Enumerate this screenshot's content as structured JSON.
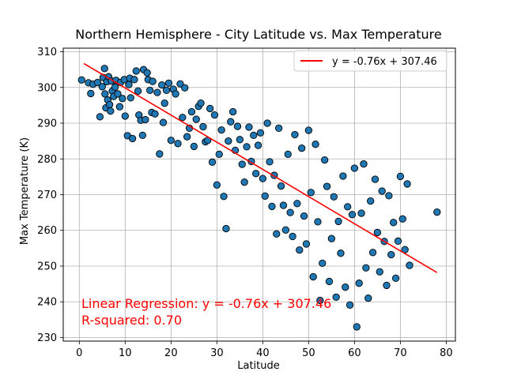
{
  "chart_data": {
    "type": "scatter",
    "title": "Northern Hemisphere - City Latitude vs. Max Temperature",
    "xlabel": "Latitude",
    "ylabel": "Max Temperature (K)",
    "xlim": [
      -3.5,
      82
    ],
    "ylim": [
      229,
      311
    ],
    "xticks": [
      0,
      10,
      20,
      30,
      40,
      50,
      60,
      70,
      80
    ],
    "yticks": [
      230,
      240,
      250,
      260,
      270,
      280,
      290,
      300,
      310
    ],
    "grid": true,
    "legend_position": "top-right",
    "colors": {
      "points": "#1f77b4",
      "point_edge": "#000000",
      "regression": "#ff0000"
    },
    "regression": {
      "label": "y = -0.76x + 307.46",
      "slope": -0.76,
      "intercept": 307.46,
      "x_range": [
        1,
        78
      ]
    },
    "annotations": [
      "Linear Regression: y = -0.76x + 307.46",
      "R-squared: 0.70"
    ],
    "points": [
      [
        0.5,
        302.1
      ],
      [
        2,
        301.3
      ],
      [
        2.5,
        298.3
      ],
      [
        3,
        300.9
      ],
      [
        4,
        301.4
      ],
      [
        4.5,
        291.8
      ],
      [
        5,
        300.2
      ],
      [
        5.2,
        302.8
      ],
      [
        5.5,
        305.3
      ],
      [
        5.6,
        298.2
      ],
      [
        5.8,
        294.3
      ],
      [
        6,
        301.6
      ],
      [
        6.2,
        296.5
      ],
      [
        6.4,
        303.0
      ],
      [
        6.6,
        295.2
      ],
      [
        6.8,
        293.4
      ],
      [
        7,
        301.8
      ],
      [
        7.2,
        299.0
      ],
      [
        7.5,
        297.5
      ],
      [
        7.8,
        300.1
      ],
      [
        8,
        302.0
      ],
      [
        8.4,
        298.2
      ],
      [
        8.8,
        294.6
      ],
      [
        9,
        301.4
      ],
      [
        9.4,
        296.9
      ],
      [
        9.8,
        302.2
      ],
      [
        10,
        292.0
      ],
      [
        10.5,
        286.5
      ],
      [
        10.8,
        300.8
      ],
      [
        11,
        302.6
      ],
      [
        11.2,
        297.1
      ],
      [
        11.6,
        285.7
      ],
      [
        12,
        302.2
      ],
      [
        12.4,
        304.6
      ],
      [
        12.8,
        299.0
      ],
      [
        13,
        292.3
      ],
      [
        13.4,
        290.8
      ],
      [
        13.8,
        286.6
      ],
      [
        14,
        305.0
      ],
      [
        14.4,
        291.0
      ],
      [
        14.8,
        304.1
      ],
      [
        15,
        302.2
      ],
      [
        15.4,
        299.2
      ],
      [
        15.8,
        293.0
      ],
      [
        16,
        301.7
      ],
      [
        16.5,
        292.6
      ],
      [
        17,
        298.6
      ],
      [
        17.5,
        281.4
      ],
      [
        18,
        300.7
      ],
      [
        18.3,
        290.2
      ],
      [
        18.6,
        295.6
      ],
      [
        19,
        299.2
      ],
      [
        19.5,
        301.2
      ],
      [
        20,
        285.2
      ],
      [
        20.5,
        299.5
      ],
      [
        21,
        298.2
      ],
      [
        21.5,
        284.3
      ],
      [
        22,
        301.0
      ],
      [
        22.5,
        291.6
      ],
      [
        23,
        299.9
      ],
      [
        23.5,
        286.2
      ],
      [
        24,
        288.6
      ],
      [
        24.5,
        293.2
      ],
      [
        25,
        283.5
      ],
      [
        25.5,
        291.1
      ],
      [
        26,
        294.7
      ],
      [
        26.5,
        295.6
      ],
      [
        27,
        289.0
      ],
      [
        27.5,
        284.8
      ],
      [
        28,
        285.2
      ],
      [
        28.5,
        294.1
      ],
      [
        29,
        279.1
      ],
      [
        29.5,
        292.3
      ],
      [
        30,
        272.7
      ],
      [
        30.5,
        281.3
      ],
      [
        31,
        288.1
      ],
      [
        31.5,
        269.5
      ],
      [
        32,
        260.5
      ],
      [
        32.5,
        285.0
      ],
      [
        33,
        290.4
      ],
      [
        33.5,
        293.2
      ],
      [
        34,
        282.4
      ],
      [
        34.5,
        289.1
      ],
      [
        35,
        285.4
      ],
      [
        35.5,
        278.5
      ],
      [
        36,
        273.5
      ],
      [
        36.5,
        283.4
      ],
      [
        37,
        288.9
      ],
      [
        37.5,
        279.3
      ],
      [
        38,
        286.6
      ],
      [
        38.5,
        275.9
      ],
      [
        39,
        283.8
      ],
      [
        39.5,
        287.3
      ],
      [
        40,
        274.5
      ],
      [
        40.5,
        269.6
      ],
      [
        41,
        290.0
      ],
      [
        41.5,
        279.2
      ],
      [
        42,
        266.7
      ],
      [
        42.5,
        275.4
      ],
      [
        43,
        259.0
      ],
      [
        43.5,
        288.6
      ],
      [
        44,
        272.4
      ],
      [
        44.5,
        267.0
      ],
      [
        45,
        260.1
      ],
      [
        45.5,
        281.3
      ],
      [
        46,
        265.0
      ],
      [
        46.5,
        258.3
      ],
      [
        47,
        286.8
      ],
      [
        47.5,
        267.5
      ],
      [
        48,
        254.5
      ],
      [
        48.5,
        283.0
      ],
      [
        49,
        264.0
      ],
      [
        49.5,
        256.2
      ],
      [
        50,
        288.0
      ],
      [
        50.5,
        270.6
      ],
      [
        51,
        247.0
      ],
      [
        51.5,
        284.1
      ],
      [
        52,
        262.4
      ],
      [
        52.5,
        240.4
      ],
      [
        53,
        250.8
      ],
      [
        53.5,
        279.7
      ],
      [
        54,
        272.3
      ],
      [
        54.5,
        245.7
      ],
      [
        55,
        257.7
      ],
      [
        55.5,
        269.4
      ],
      [
        56,
        241.3
      ],
      [
        56.5,
        262.5
      ],
      [
        57,
        253.6
      ],
      [
        57.5,
        275.2
      ],
      [
        58,
        244.1
      ],
      [
        58.5,
        266.6
      ],
      [
        59,
        239.1
      ],
      [
        59.5,
        264.4
      ],
      [
        60,
        277.4
      ],
      [
        60.5,
        233.0
      ],
      [
        61,
        245.2
      ],
      [
        61.5,
        264.8
      ],
      [
        62,
        278.6
      ],
      [
        62.5,
        249.5
      ],
      [
        63,
        241.0
      ],
      [
        63.5,
        268.2
      ],
      [
        64,
        253.8
      ],
      [
        64.5,
        274.3
      ],
      [
        65,
        259.4
      ],
      [
        65.5,
        248.4
      ],
      [
        66,
        271.0
      ],
      [
        66.5,
        256.9
      ],
      [
        67,
        244.6
      ],
      [
        67.5,
        269.7
      ],
      [
        68,
        253.2
      ],
      [
        68.5,
        262.2
      ],
      [
        69,
        246.6
      ],
      [
        69.5,
        257.0
      ],
      [
        70,
        275.1
      ],
      [
        70.5,
        263.2
      ],
      [
        71,
        254.6
      ],
      [
        71.5,
        273.0
      ],
      [
        72,
        250.2
      ],
      [
        78,
        265.1
      ]
    ]
  }
}
